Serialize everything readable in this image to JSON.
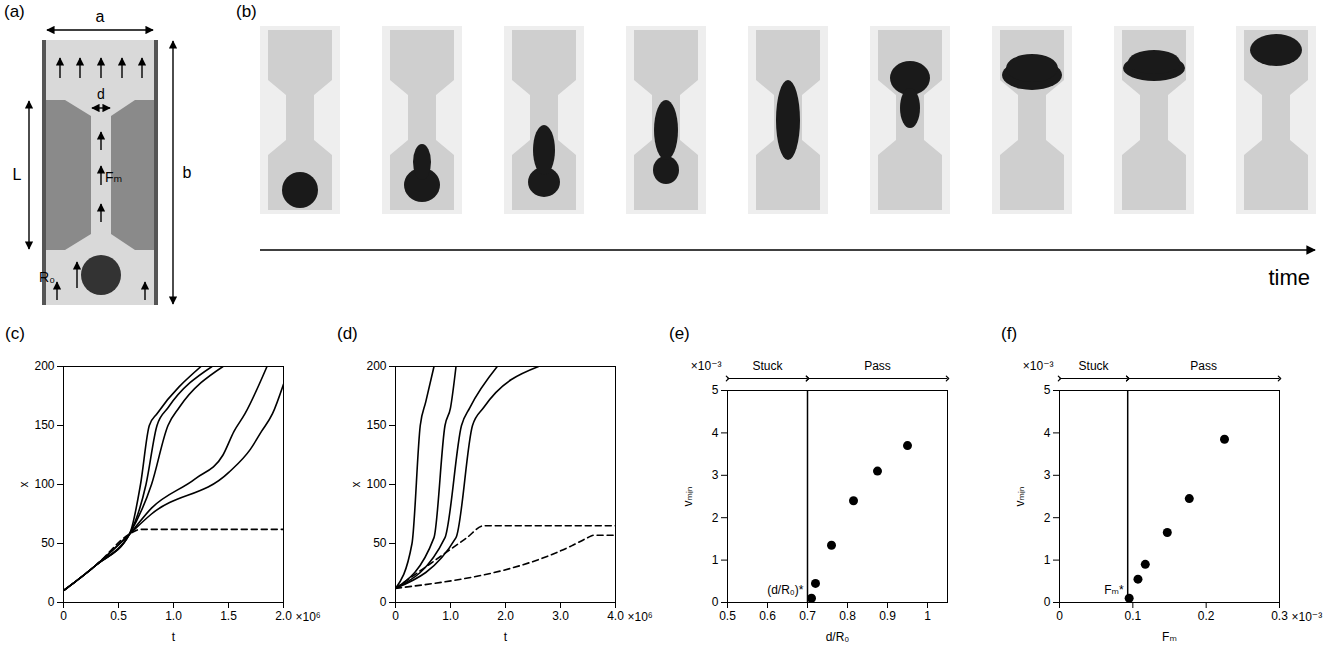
{
  "diagram": {
    "a": {
      "title": "(a)",
      "labels": {
        "width": "a",
        "height": "b",
        "neck_length": "L",
        "neck_width": "d",
        "force": "Fₘ",
        "radius": "R₀"
      }
    },
    "b": {
      "title": "(b)",
      "axis_label": "time"
    }
  },
  "chart_data": [
    {
      "type": "line",
      "title": "(c)",
      "xlabel": "t",
      "ylabel": "x",
      "x_multiplier": "×10⁶",
      "xlim": [
        0,
        2
      ],
      "xticks": [
        0,
        0.5,
        {
          "value": 1,
          "label": "1.0"
        },
        1.5,
        {
          "value": 2,
          "label": "2.0"
        }
      ],
      "ylim": [
        0,
        200
      ],
      "yticks": [
        0,
        50,
        100,
        150,
        200
      ],
      "series": [
        {
          "color": "#000000",
          "line_style": "solid",
          "x": [
            0,
            0.3,
            0.6,
            0.7,
            0.78,
            0.85,
            1.25
          ],
          "values": [
            10,
            32,
            58,
            100,
            150,
            160,
            200
          ]
        },
        {
          "color": "#000000",
          "line_style": "solid",
          "x": [
            0,
            0.3,
            0.6,
            0.75,
            0.85,
            0.95,
            1.35
          ],
          "values": [
            10,
            32,
            58,
            100,
            150,
            165,
            200
          ]
        },
        {
          "color": "#000000",
          "line_style": "solid",
          "x": [
            0,
            0.3,
            0.6,
            0.8,
            0.95,
            1.05,
            1.45
          ],
          "values": [
            10,
            32,
            58,
            100,
            150,
            165,
            200
          ]
        },
        {
          "color": "#000000",
          "line_style": "solid",
          "x": [
            0,
            0.3,
            0.6,
            0.8,
            1.2,
            1.45,
            1.55,
            1.65,
            1.85
          ],
          "values": [
            10,
            32,
            58,
            80,
            105,
            125,
            145,
            160,
            200
          ]
        },
        {
          "color": "#000000",
          "line_style": "solid",
          "x": [
            0,
            0.3,
            0.6,
            0.8,
            1.5,
            1.7,
            1.8,
            1.9,
            2.0
          ],
          "values": [
            10,
            32,
            58,
            75,
            110,
            130,
            145,
            160,
            185
          ]
        },
        {
          "color": "#000000",
          "line_style": "dashed",
          "x": [
            0,
            0.3,
            0.6,
            0.7,
            2.0
          ],
          "values": [
            10,
            32,
            58,
            62,
            62
          ]
        }
      ]
    },
    {
      "type": "line",
      "title": "(d)",
      "xlabel": "t",
      "ylabel": "x",
      "x_multiplier": "×10⁶",
      "xlim": [
        0,
        4
      ],
      "xticks": [
        0,
        {
          "value": 1,
          "label": "1.0"
        },
        {
          "value": 2,
          "label": "2.0"
        },
        {
          "value": 3,
          "label": "3.0"
        },
        {
          "value": 4,
          "label": "4.0"
        }
      ],
      "ylim": [
        0,
        200
      ],
      "yticks": [
        0,
        50,
        100,
        150,
        200
      ],
      "series": [
        {
          "color": "#000000",
          "line_style": "solid",
          "x": [
            0,
            0.3,
            0.45,
            0.55,
            0.7
          ],
          "values": [
            12,
            50,
            150,
            170,
            200
          ]
        },
        {
          "color": "#000000",
          "line_style": "solid",
          "x": [
            0,
            0.7,
            0.9,
            1.0,
            1.1
          ],
          "values": [
            12,
            55,
            150,
            165,
            200
          ]
        },
        {
          "color": "#000000",
          "line_style": "solid",
          "x": [
            0,
            0.9,
            1.2,
            1.35,
            1.85
          ],
          "values": [
            12,
            55,
            150,
            165,
            200
          ]
        },
        {
          "color": "#000000",
          "line_style": "solid",
          "x": [
            0,
            1.1,
            1.4,
            1.6,
            2.6
          ],
          "values": [
            12,
            55,
            150,
            165,
            200
          ]
        },
        {
          "color": "#000000",
          "line_style": "dashed",
          "x": [
            0,
            1.3,
            1.6,
            4.0
          ],
          "values": [
            12,
            55,
            65,
            65
          ]
        },
        {
          "color": "#000000",
          "line_style": "dashed",
          "x": [
            0,
            3.2,
            3.5,
            3.6,
            4.0
          ],
          "values": [
            12,
            48,
            55,
            57,
            57
          ]
        }
      ]
    },
    {
      "type": "scatter",
      "title": "(e)",
      "xlabel": "d/R₀",
      "ylabel": "vₘᵢₙ",
      "y_multiplier": "×10⁻³",
      "xlim": [
        0.5,
        1.05
      ],
      "xticks": [
        0.5,
        0.6,
        0.7,
        0.8,
        0.9,
        1
      ],
      "ylim": [
        0,
        5
      ],
      "yticks": [
        0,
        1,
        2,
        3,
        4,
        5
      ],
      "x": [
        0.71,
        0.72,
        0.76,
        0.815,
        0.875,
        0.95
      ],
      "values": [
        0.1,
        0.45,
        1.35,
        2.4,
        3.1,
        3.7
      ],
      "color": "#000000",
      "marker": "circle",
      "threshold": 0.7,
      "threshold_label": "(d/R₀)*",
      "regions": [
        "Stuck",
        "Pass"
      ]
    },
    {
      "type": "scatter",
      "title": "(f)",
      "xlabel": "Fₘ",
      "ylabel": "vₘᵢₙ",
      "y_multiplier": "×10⁻³",
      "x_multiplier": "×10⁻³",
      "xlim": [
        0,
        0.3
      ],
      "xticks": [
        0,
        0.1,
        0.2,
        0.3
      ],
      "ylim": [
        0,
        5
      ],
      "yticks": [
        0,
        1,
        2,
        3,
        4,
        5
      ],
      "x": [
        0.095,
        0.107,
        0.117,
        0.147,
        0.177,
        0.225
      ],
      "values": [
        0.1,
        0.55,
        0.9,
        1.65,
        2.45,
        3.85
      ],
      "color": "#000000",
      "marker": "circle",
      "threshold": 0.093,
      "threshold_label": "Fₘ*",
      "regions": [
        "Stuck",
        "Pass"
      ]
    }
  ]
}
